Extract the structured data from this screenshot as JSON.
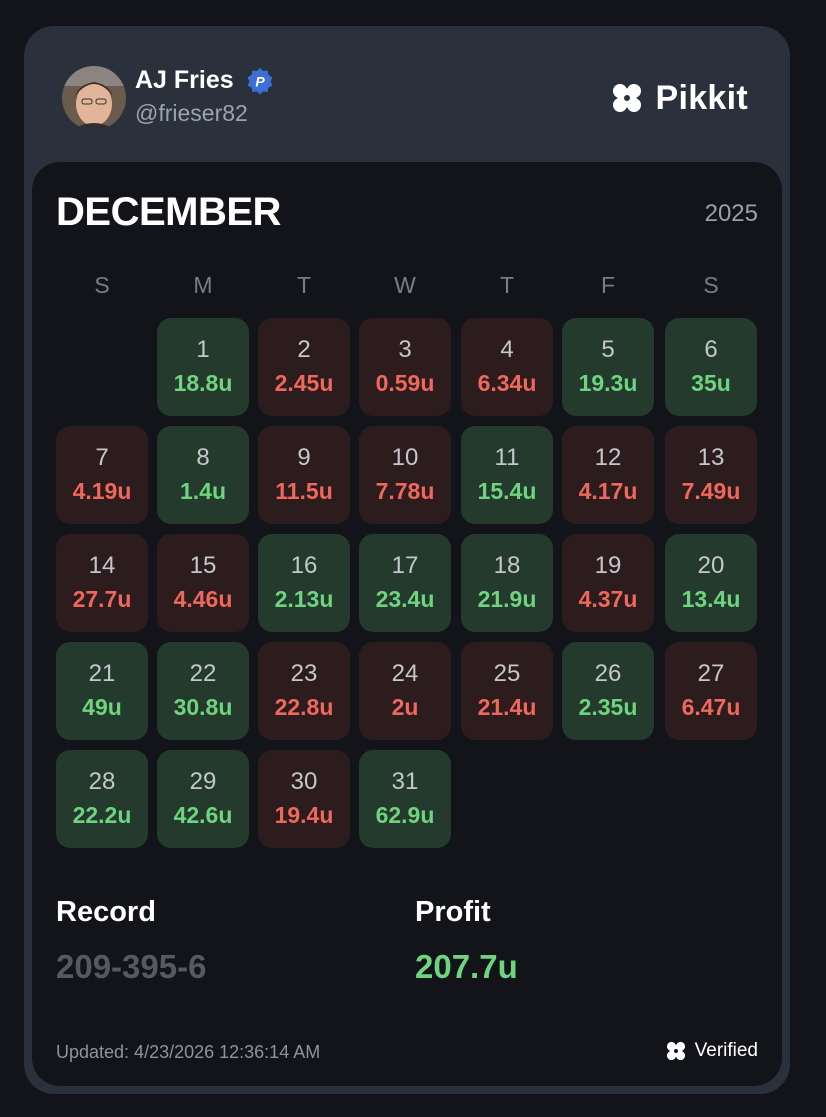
{
  "profile": {
    "name": "AJ Fries",
    "handle": "@frieser82",
    "badge_letter": "P"
  },
  "brand": {
    "name": "Pikkit",
    "icon": "clover-logo-icon"
  },
  "calendar": {
    "month": "DECEMBER",
    "year": "2025",
    "weekdays": [
      "S",
      "M",
      "T",
      "W",
      "T",
      "F",
      "S"
    ],
    "days": [
      {
        "day": "1",
        "value": "18.8u",
        "result": "win"
      },
      {
        "day": "2",
        "value": "2.45u",
        "result": "loss"
      },
      {
        "day": "3",
        "value": "0.59u",
        "result": "loss"
      },
      {
        "day": "4",
        "value": "6.34u",
        "result": "loss"
      },
      {
        "day": "5",
        "value": "19.3u",
        "result": "win"
      },
      {
        "day": "6",
        "value": "35u",
        "result": "win"
      },
      {
        "day": "7",
        "value": "4.19u",
        "result": "loss"
      },
      {
        "day": "8",
        "value": "1.4u",
        "result": "win"
      },
      {
        "day": "9",
        "value": "11.5u",
        "result": "loss"
      },
      {
        "day": "10",
        "value": "7.78u",
        "result": "loss"
      },
      {
        "day": "11",
        "value": "15.4u",
        "result": "win"
      },
      {
        "day": "12",
        "value": "4.17u",
        "result": "loss"
      },
      {
        "day": "13",
        "value": "7.49u",
        "result": "loss"
      },
      {
        "day": "14",
        "value": "27.7u",
        "result": "loss"
      },
      {
        "day": "15",
        "value": "4.46u",
        "result": "loss"
      },
      {
        "day": "16",
        "value": "2.13u",
        "result": "win"
      },
      {
        "day": "17",
        "value": "23.4u",
        "result": "win"
      },
      {
        "day": "18",
        "value": "21.9u",
        "result": "win"
      },
      {
        "day": "19",
        "value": "4.37u",
        "result": "loss"
      },
      {
        "day": "20",
        "value": "13.4u",
        "result": "win"
      },
      {
        "day": "21",
        "value": "49u",
        "result": "win"
      },
      {
        "day": "22",
        "value": "30.8u",
        "result": "win"
      },
      {
        "day": "23",
        "value": "22.8u",
        "result": "loss"
      },
      {
        "day": "24",
        "value": "2u",
        "result": "loss"
      },
      {
        "day": "25",
        "value": "21.4u",
        "result": "loss"
      },
      {
        "day": "26",
        "value": "2.35u",
        "result": "win"
      },
      {
        "day": "27",
        "value": "6.47u",
        "result": "loss"
      },
      {
        "day": "28",
        "value": "22.2u",
        "result": "win"
      },
      {
        "day": "29",
        "value": "42.6u",
        "result": "win"
      },
      {
        "day": "30",
        "value": "19.4u",
        "result": "loss"
      },
      {
        "day": "31",
        "value": "62.9u",
        "result": "win"
      }
    ]
  },
  "stats": {
    "record_label": "Record",
    "record_value": "209-395-6",
    "profit_label": "Profit",
    "profit_value": "207.7u"
  },
  "footer": {
    "updated": "Updated: 4/23/2026 12:36:14 AM",
    "verified": "Verified"
  },
  "colors": {
    "win_bg": "#243a2d",
    "loss_bg": "#2c1c1e",
    "win_text": "#6fd47f",
    "loss_text": "#f0675c",
    "badge": "#3d6fd6"
  }
}
